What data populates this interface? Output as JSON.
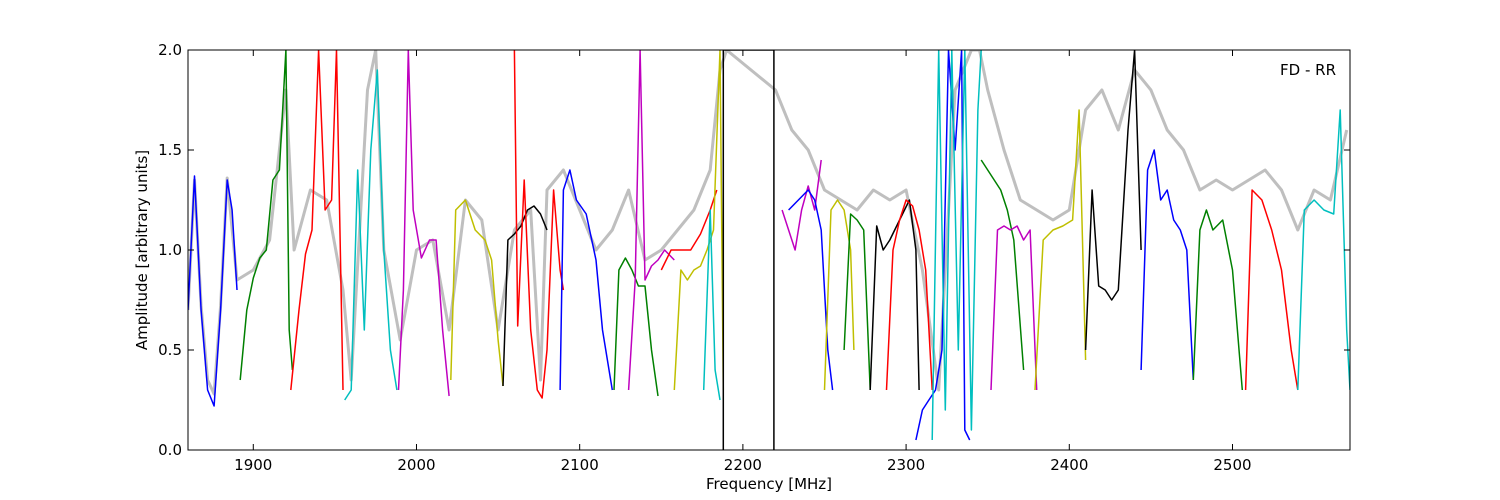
{
  "chart_data": {
    "type": "line",
    "title": "",
    "annotation": "FD - RR",
    "xlabel": "Frequency [MHz]",
    "ylabel": "Amplitude [arbitrary units]",
    "xlim": [
      1860,
      2572
    ],
    "ylim": [
      0.0,
      2.0
    ],
    "x_ticks": [
      1900,
      2000,
      2100,
      2200,
      2300,
      2400,
      2500
    ],
    "y_ticks": [
      0.0,
      0.5,
      1.0,
      1.5,
      2.0
    ],
    "x_tick_labels": [
      "1900",
      "2000",
      "2100",
      "2200",
      "2300",
      "2400",
      "2500"
    ],
    "y_tick_labels": [
      "0.0",
      "0.5",
      "1.0",
      "1.5",
      "2.0"
    ],
    "grid": false,
    "reference_color": "#bfbfbf",
    "segments": [
      {
        "color": "#0000ff",
        "x": [
          1860,
          1864,
          1868,
          1872,
          1876,
          1880,
          1884,
          1887,
          1890
        ],
        "y": [
          0.7,
          1.37,
          0.7,
          0.3,
          0.22,
          0.7,
          1.35,
          1.2,
          0.8
        ]
      },
      {
        "color": "#008000",
        "x": [
          1892,
          1896,
          1900,
          1904,
          1908,
          1912,
          1916,
          1920,
          1922,
          1924
        ],
        "y": [
          0.35,
          0.7,
          0.86,
          0.96,
          1.0,
          1.35,
          1.4,
          2.0,
          0.6,
          0.4
        ]
      },
      {
        "color": "#ff0000",
        "x": [
          1923,
          1928,
          1932,
          1936,
          1940,
          1944,
          1948,
          1951,
          1955
        ],
        "y": [
          0.3,
          0.7,
          0.98,
          1.1,
          2.0,
          1.2,
          1.25,
          2.0,
          0.3
        ]
      },
      {
        "color": "#00bfbf",
        "x": [
          1956,
          1960,
          1964,
          1968,
          1972,
          1976,
          1980,
          1984,
          1988
        ],
        "y": [
          0.25,
          0.3,
          1.4,
          0.6,
          1.5,
          1.9,
          1.0,
          0.5,
          0.3
        ]
      },
      {
        "color": "#bf00bf",
        "x": [
          1989,
          1992,
          1995,
          1998,
          2003,
          2008,
          2012,
          2016,
          2020
        ],
        "y": [
          0.3,
          0.8,
          2.0,
          1.2,
          0.96,
          1.05,
          1.05,
          0.6,
          0.27
        ]
      },
      {
        "color": "#bfbf00",
        "x": [
          2021,
          2024,
          2030,
          2036,
          2042,
          2046,
          2050,
          2053
        ],
        "y": [
          0.35,
          1.2,
          1.25,
          1.1,
          1.05,
          0.95,
          0.55,
          0.32
        ]
      },
      {
        "color": "#000000",
        "x": [
          2053,
          2056,
          2060,
          2064,
          2068,
          2072,
          2076,
          2080
        ],
        "y": [
          0.32,
          1.05,
          1.08,
          1.12,
          1.2,
          1.22,
          1.18,
          1.1
        ]
      },
      {
        "color": "#ff0000",
        "x": [
          2060,
          2062,
          2066,
          2070,
          2074,
          2077,
          2080,
          2084,
          2088,
          2090
        ],
        "y": [
          2.0,
          0.62,
          1.35,
          0.6,
          0.3,
          0.26,
          0.5,
          1.3,
          0.9,
          0.8
        ]
      },
      {
        "color": "#0000ff",
        "x": [
          2088,
          2090,
          2094,
          2098,
          2104,
          2110,
          2114,
          2120
        ],
        "y": [
          0.3,
          1.3,
          1.4,
          1.25,
          1.18,
          0.95,
          0.6,
          0.3
        ]
      },
      {
        "color": "#008000",
        "x": [
          2121,
          2124,
          2128,
          2132,
          2136,
          2140,
          2144,
          2148
        ],
        "y": [
          0.3,
          0.9,
          0.96,
          0.9,
          0.82,
          0.82,
          0.5,
          0.27
        ]
      },
      {
        "color": "#bf00bf",
        "x": [
          2130,
          2134,
          2137,
          2140,
          2144,
          2148,
          2152,
          2158
        ],
        "y": [
          0.3,
          0.85,
          2.0,
          0.85,
          0.92,
          0.95,
          1.0,
          0.95
        ]
      },
      {
        "color": "#ff0000",
        "x": [
          2150,
          2156,
          2162,
          2168,
          2174,
          2180,
          2184
        ],
        "y": [
          0.9,
          1.0,
          1.0,
          1.0,
          1.08,
          1.2,
          1.3
        ]
      },
      {
        "color": "#bfbf00",
        "x": [
          2158,
          2162,
          2166,
          2170,
          2174,
          2178,
          2182,
          2186,
          2188
        ],
        "y": [
          0.3,
          0.9,
          0.85,
          0.9,
          0.92,
          1.0,
          1.1,
          2.0,
          0.3
        ]
      },
      {
        "color": "#00bfbf",
        "x": [
          2176,
          2180,
          2183,
          2186
        ],
        "y": [
          0.3,
          1.2,
          0.4,
          0.25
        ]
      },
      {
        "color": "#000000",
        "x": [
          2188,
          2188,
          2219,
          2219
        ],
        "y": [
          0.0,
          2.0,
          2.0,
          0.0
        ]
      },
      {
        "color": "#bf00bf",
        "x": [
          2224,
          2228,
          2232,
          2236,
          2240,
          2244,
          2248
        ],
        "y": [
          1.2,
          1.1,
          1.0,
          1.2,
          1.32,
          1.2,
          1.45
        ]
      },
      {
        "color": "#0000ff",
        "x": [
          2228,
          2234,
          2240,
          2244,
          2248,
          2252,
          2255
        ],
        "y": [
          1.2,
          1.25,
          1.3,
          1.25,
          1.1,
          0.5,
          0.3
        ]
      },
      {
        "color": "#bfbf00",
        "x": [
          2250,
          2254,
          2258,
          2262,
          2266,
          2268
        ],
        "y": [
          0.3,
          1.2,
          1.25,
          1.2,
          1.0,
          0.5
        ]
      },
      {
        "color": "#008000",
        "x": [
          2262,
          2266,
          2270,
          2274,
          2278
        ],
        "y": [
          0.5,
          1.18,
          1.15,
          1.1,
          0.3
        ]
      },
      {
        "color": "#000000",
        "x": [
          2278,
          2282,
          2286,
          2290,
          2296,
          2302,
          2306,
          2308
        ],
        "y": [
          0.3,
          1.12,
          1.0,
          1.05,
          1.15,
          1.25,
          1.0,
          0.3
        ]
      },
      {
        "color": "#ff0000",
        "x": [
          2288,
          2292,
          2296,
          2300,
          2304,
          2308,
          2312,
          2316
        ],
        "y": [
          0.3,
          1.0,
          1.15,
          1.25,
          1.22,
          1.1,
          0.9,
          0.3
        ]
      },
      {
        "color": "#0000ff",
        "x": [
          2306,
          2310,
          2314,
          2318,
          2322,
          2326,
          2330,
          2334,
          2336,
          2339
        ],
        "y": [
          0.05,
          0.2,
          0.25,
          0.3,
          0.5,
          2.0,
          1.5,
          2.0,
          0.1,
          0.05
        ]
      },
      {
        "color": "#00bfbf",
        "x": [
          2316,
          2320,
          2324,
          2328,
          2332,
          2336,
          2340,
          2344,
          2346
        ],
        "y": [
          0.05,
          2.0,
          0.2,
          2.0,
          0.5,
          2.0,
          0.1,
          1.7,
          2.0
        ]
      },
      {
        "color": "#008000",
        "x": [
          2346,
          2350,
          2354,
          2358,
          2362,
          2366,
          2372
        ],
        "y": [
          1.45,
          1.4,
          1.35,
          1.3,
          1.2,
          1.05,
          0.4
        ]
      },
      {
        "color": "#bf00bf",
        "x": [
          2352,
          2356,
          2360,
          2364,
          2368,
          2372,
          2376,
          2380
        ],
        "y": [
          0.3,
          1.1,
          1.12,
          1.1,
          1.12,
          1.05,
          1.1,
          0.3
        ]
      },
      {
        "color": "#bfbf00",
        "x": [
          2379,
          2384,
          2390,
          2396,
          2402,
          2406,
          2410
        ],
        "y": [
          0.3,
          1.05,
          1.1,
          1.12,
          1.15,
          1.7,
          0.45
        ]
      },
      {
        "color": "#000000",
        "x": [
          2410,
          2414,
          2418,
          2422,
          2426,
          2430,
          2436,
          2440,
          2444
        ],
        "y": [
          0.5,
          1.3,
          0.82,
          0.8,
          0.75,
          0.8,
          1.6,
          2.0,
          1.0
        ]
      },
      {
        "color": "#0000ff",
        "x": [
          2444,
          2448,
          2452,
          2456,
          2460,
          2464,
          2468,
          2472,
          2476
        ],
        "y": [
          0.4,
          1.4,
          1.5,
          1.25,
          1.3,
          1.15,
          1.1,
          1.0,
          0.35
        ]
      },
      {
        "color": "#008000",
        "x": [
          2476,
          2480,
          2484,
          2488,
          2494,
          2500,
          2506
        ],
        "y": [
          0.35,
          1.1,
          1.2,
          1.1,
          1.15,
          0.9,
          0.3
        ]
      },
      {
        "color": "#ff0000",
        "x": [
          2508,
          2512,
          2518,
          2524,
          2530,
          2536,
          2540
        ],
        "y": [
          0.3,
          1.3,
          1.25,
          1.1,
          0.9,
          0.5,
          0.3
        ]
      },
      {
        "color": "#00bfbf",
        "x": [
          2540,
          2544,
          2550,
          2556,
          2562,
          2566,
          2570,
          2572
        ],
        "y": [
          0.3,
          1.2,
          1.25,
          1.2,
          1.18,
          1.7,
          0.6,
          0.3
        ]
      }
    ],
    "reference_trace": {
      "color": "#bfbfbf",
      "x": [
        1860,
        1864,
        1868,
        1872,
        1876,
        1880,
        1884,
        1890,
        1900,
        1910,
        1920,
        1925,
        1935,
        1945,
        1955,
        1960,
        1970,
        1975,
        1980,
        1990,
        2000,
        2010,
        2020,
        2030,
        2040,
        2050,
        2060,
        2070,
        2076,
        2080,
        2085,
        2090,
        2100,
        2110,
        2120,
        2130,
        2140,
        2150,
        2160,
        2170,
        2180,
        2186,
        2190,
        2220,
        2230,
        2240,
        2250,
        2260,
        2270,
        2280,
        2290,
        2300,
        2310,
        2320,
        2330,
        2340,
        2345,
        2350,
        2360,
        2370,
        2380,
        2390,
        2400,
        2410,
        2420,
        2430,
        2440,
        2450,
        2460,
        2470,
        2480,
        2490,
        2500,
        2510,
        2520,
        2530,
        2540,
        2550,
        2560,
        2570
      ],
      "y": [
        0.7,
        1.35,
        0.72,
        0.35,
        0.28,
        0.72,
        1.36,
        0.85,
        0.9,
        1.05,
        1.8,
        1.0,
        1.3,
        1.25,
        0.8,
        0.35,
        1.8,
        2.0,
        1.0,
        0.55,
        1.0,
        1.05,
        0.6,
        1.25,
        1.15,
        0.6,
        1.1,
        1.2,
        0.35,
        1.3,
        1.35,
        1.4,
        1.2,
        1.0,
        1.1,
        1.3,
        0.95,
        1.0,
        1.1,
        1.2,
        1.4,
        1.9,
        2.0,
        1.8,
        1.6,
        1.5,
        1.3,
        1.25,
        1.2,
        1.3,
        1.25,
        1.3,
        0.9,
        0.3,
        1.8,
        2.0,
        2.0,
        1.8,
        1.5,
        1.25,
        1.2,
        1.15,
        1.2,
        1.7,
        1.8,
        1.6,
        1.9,
        1.8,
        1.6,
        1.5,
        1.3,
        1.35,
        1.3,
        1.35,
        1.4,
        1.3,
        1.1,
        1.3,
        1.25,
        1.6
      ]
    }
  }
}
